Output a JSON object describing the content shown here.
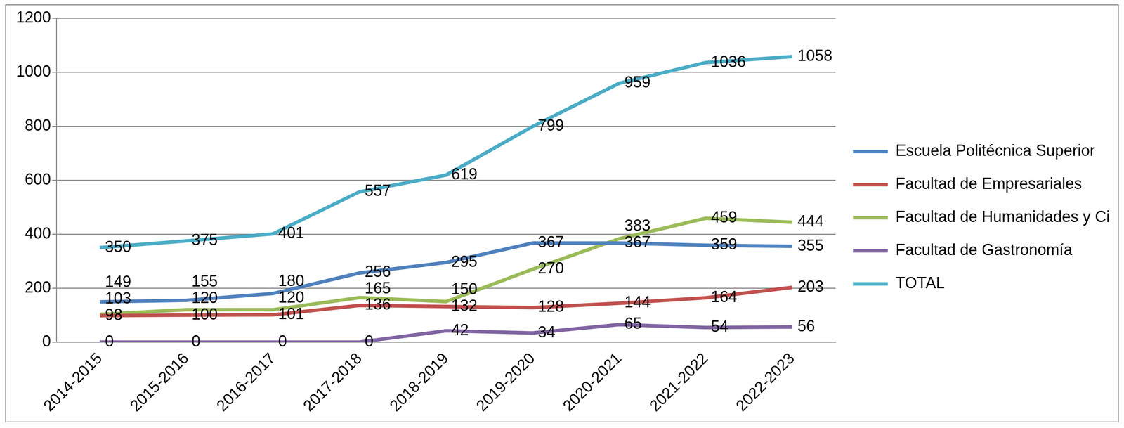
{
  "chart_data": {
    "type": "line",
    "categories": [
      "2014-2015",
      "2015-2016",
      "2016-2017",
      "2017-2018",
      "2018-2019",
      "2019-2020",
      "2020-2021",
      "2021-2022",
      "2022-2023"
    ],
    "series": [
      {
        "name": "Escuela Politécnica Superior",
        "color": "#4f81bd",
        "values": [
          149,
          155,
          180,
          256,
          295,
          367,
          367,
          359,
          355
        ]
      },
      {
        "name": "Facultad de Empresariales",
        "color": "#c0504d",
        "values": [
          98,
          100,
          101,
          136,
          132,
          128,
          144,
          164,
          203
        ]
      },
      {
        "name": "Facultad de Humanidades y Ciencias de la Educación",
        "color": "#9bbb59",
        "values": [
          103,
          120,
          120,
          165,
          150,
          270,
          383,
          459,
          444
        ]
      },
      {
        "name": "Facultad de Gastronomía",
        "color": "#8064a2",
        "values": [
          0,
          0,
          0,
          0,
          42,
          34,
          65,
          54,
          56
        ]
      },
      {
        "name": "TOTAL",
        "color": "#4bacc6",
        "values": [
          350,
          375,
          401,
          557,
          619,
          799,
          959,
          1036,
          1058
        ]
      }
    ],
    "ylim": [
      0,
      1200
    ],
    "yticks": [
      0,
      200,
      400,
      600,
      800,
      1000,
      1200
    ],
    "grid": true,
    "legend": "right",
    "data_labels": true
  }
}
